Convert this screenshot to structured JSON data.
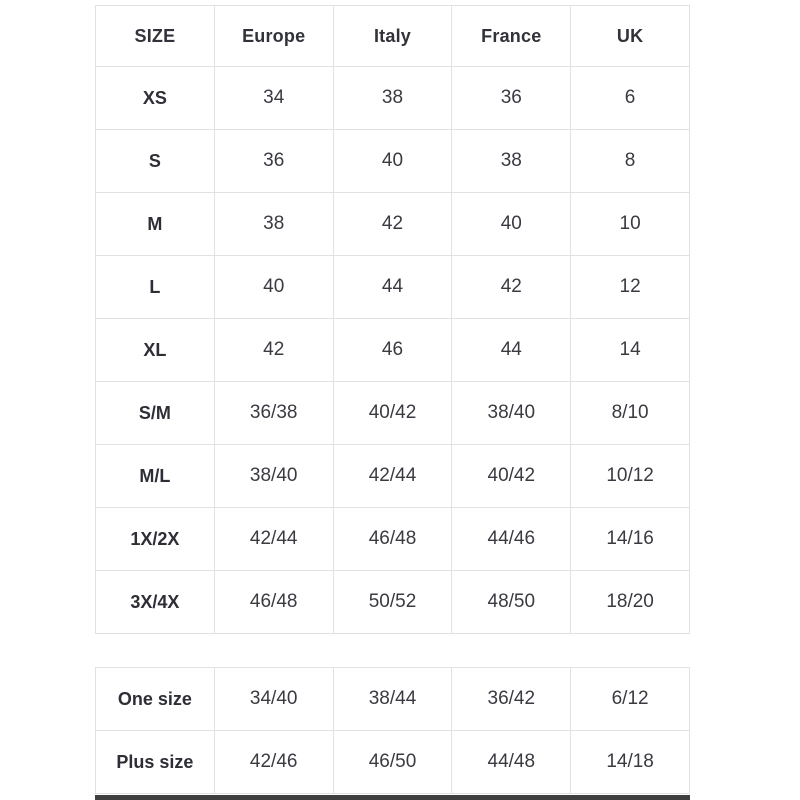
{
  "size_chart": {
    "headers": [
      "SIZE",
      "Europe",
      "Italy",
      "France",
      "UK"
    ],
    "rows": [
      {
        "label": "XS",
        "values": [
          "34",
          "38",
          "36",
          "6"
        ]
      },
      {
        "label": "S",
        "values": [
          "36",
          "40",
          "38",
          "8"
        ]
      },
      {
        "label": "M",
        "values": [
          "38",
          "42",
          "40",
          "10"
        ]
      },
      {
        "label": "L",
        "values": [
          "40",
          "44",
          "42",
          "12"
        ]
      },
      {
        "label": "XL",
        "values": [
          "42",
          "46",
          "44",
          "14"
        ]
      },
      {
        "label": "S/M",
        "values": [
          "36/38",
          "40/42",
          "38/40",
          "8/10"
        ]
      },
      {
        "label": "M/L",
        "values": [
          "38/40",
          "42/44",
          "40/42",
          "10/12"
        ]
      },
      {
        "label": "1X/2X",
        "values": [
          "42/44",
          "46/48",
          "44/46",
          "14/16"
        ]
      },
      {
        "label": "3X/4X",
        "values": [
          "46/48",
          "50/52",
          "48/50",
          "18/20"
        ]
      }
    ]
  },
  "special_sizes": {
    "rows": [
      {
        "label": "One size",
        "values": [
          "34/40",
          "38/44",
          "36/42",
          "6/12"
        ]
      },
      {
        "label": "Plus size",
        "values": [
          "42/46",
          "46/50",
          "44/48",
          "14/18"
        ]
      }
    ]
  },
  "colors": {
    "text": "#32333a",
    "border": "#e2e2e2",
    "bottom_bar": "#3f3f3f",
    "background": "#ffffff"
  }
}
